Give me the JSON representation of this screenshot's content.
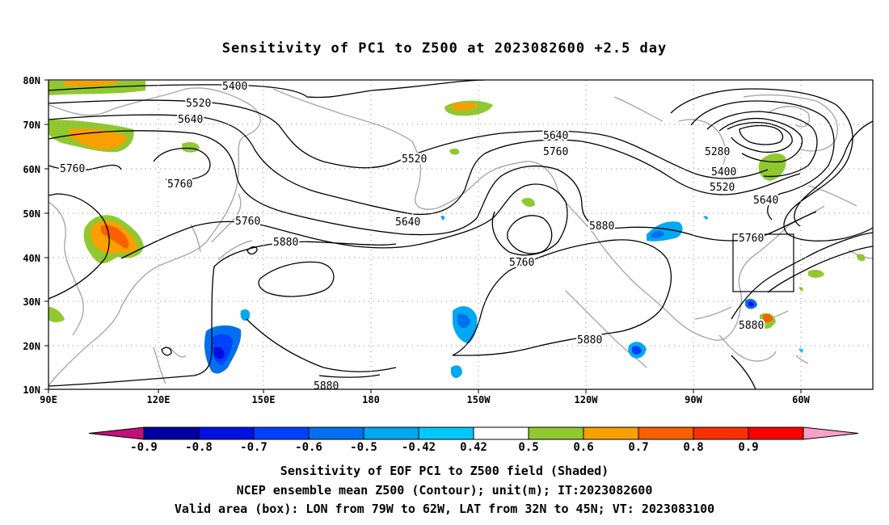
{
  "title": "Sensitivity of PC1 to Z500 at 2023082600 +2.5 day",
  "axes": {
    "lat_labels": [
      "80N",
      "70N",
      "60N",
      "50N",
      "40N",
      "30N",
      "20N",
      "10N"
    ],
    "lon_labels": [
      "90E",
      "120E",
      "150E",
      "180",
      "150W",
      "120W",
      "90W",
      "60W"
    ]
  },
  "contour_labels": [
    {
      "text": "5400",
      "id": "c5400a"
    },
    {
      "text": "5520",
      "id": "c5520a"
    },
    {
      "text": "5640",
      "id": "c5640a"
    },
    {
      "text": "5760",
      "id": "c5760a"
    },
    {
      "text": "5760",
      "id": "c5760b"
    },
    {
      "text": "5520",
      "id": "c5520b"
    },
    {
      "text": "5640",
      "id": "c5640b"
    },
    {
      "text": "5760",
      "id": "c5760c"
    },
    {
      "text": "5640",
      "id": "c5640c"
    },
    {
      "text": "5760",
      "id": "c5760d"
    },
    {
      "text": "5880",
      "id": "c5880a"
    },
    {
      "text": "5760",
      "id": "c5760e"
    },
    {
      "text": "5880",
      "id": "c5880b"
    },
    {
      "text": "5280",
      "id": "c5280"
    },
    {
      "text": "5400",
      "id": "c5400b"
    },
    {
      "text": "5520",
      "id": "c5520c"
    },
    {
      "text": "5640",
      "id": "c5640d"
    },
    {
      "text": "5760",
      "id": "c5760f"
    },
    {
      "text": "5880",
      "id": "c5880c"
    },
    {
      "text": "5880",
      "id": "c5880d"
    },
    {
      "text": "5880",
      "id": "c5880e"
    }
  ],
  "colorbar": {
    "labels": [
      "-0.9",
      "-0.8",
      "-0.7",
      "-0.6",
      "-0.5",
      "-0.42",
      "0.42",
      "0.5",
      "0.6",
      "0.7",
      "0.8",
      "0.9"
    ],
    "colors": [
      "#0000a0",
      "#0010e0",
      "#0040ff",
      "#0070f0",
      "#00a8f0",
      "#00c8ff",
      "#ffffff",
      "#90c830",
      "#f8a000",
      "#f86000",
      "#f83000",
      "#f80000"
    ],
    "low_end_color": "#c0107a",
    "high_end_color": "#f8a0c8"
  },
  "valid_box": {
    "lon_from": "79W",
    "lon_to": "62W",
    "lat_from": "32N",
    "lat_to": "45N"
  },
  "captions": {
    "line1": "Sensitivity of EOF PC1 to Z500 field (Shaded)",
    "line2": "NCEP ensemble mean Z500 (Contour); unit(m); IT:2023082600",
    "line3": "Valid area (box): LON from 79W to 62W, LAT from 32N to 45N; VT: 2023083100"
  }
}
